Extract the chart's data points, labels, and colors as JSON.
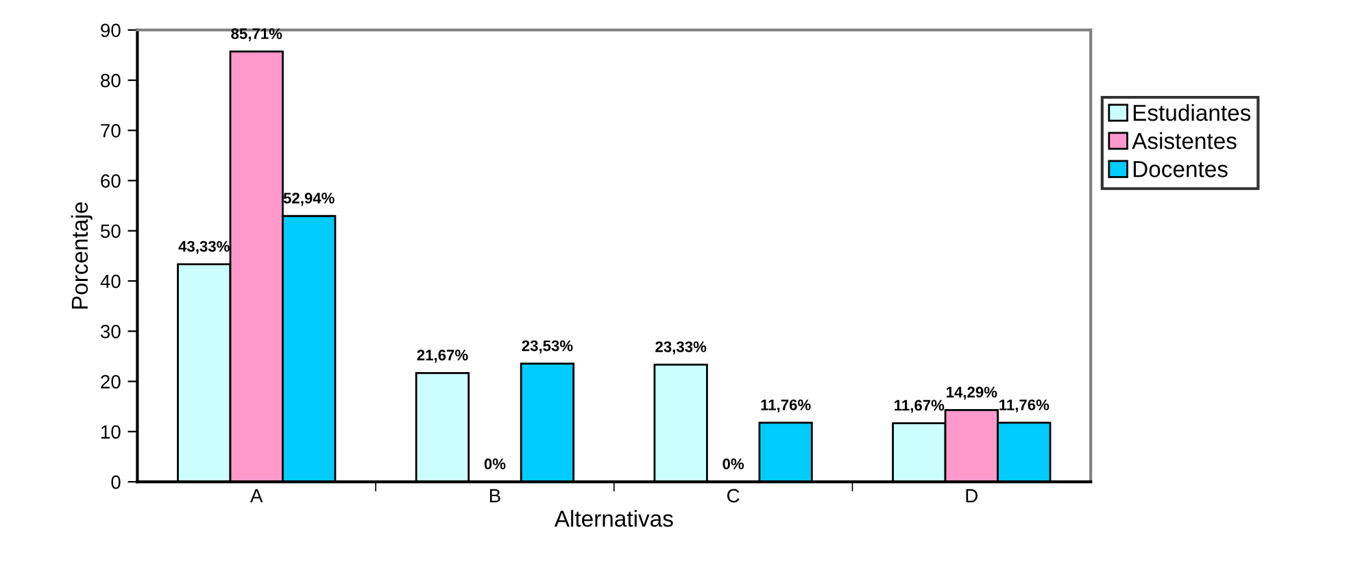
{
  "chart_data": {
    "type": "bar",
    "xlabel": "Alternativas",
    "ylabel": "Porcentaje",
    "categories": [
      "A",
      "B",
      "C",
      "D"
    ],
    "series": [
      {
        "name": "Estudiantes",
        "color": "#ccffff",
        "values": [
          43.33,
          21.67,
          23.33,
          11.67
        ],
        "value_labels": [
          "43,33%",
          "21,67%",
          "23,33%",
          "11,67%"
        ]
      },
      {
        "name": "Asistentes",
        "color": "#ff99cc",
        "values": [
          85.71,
          0,
          0,
          14.29
        ],
        "value_labels": [
          "85,71%",
          "0%",
          "0%",
          "14,29%"
        ]
      },
      {
        "name": "Docentes",
        "color": "#00ccff",
        "values": [
          52.94,
          23.53,
          11.76,
          11.76
        ],
        "value_labels": [
          "52,94%",
          "23,53%",
          "11,76%",
          "11,76%"
        ]
      }
    ],
    "ylim": [
      0,
      90
    ],
    "yticks": [
      0,
      10,
      20,
      30,
      40,
      50,
      60,
      70,
      80,
      90
    ],
    "grid": false,
    "legend": "right"
  }
}
